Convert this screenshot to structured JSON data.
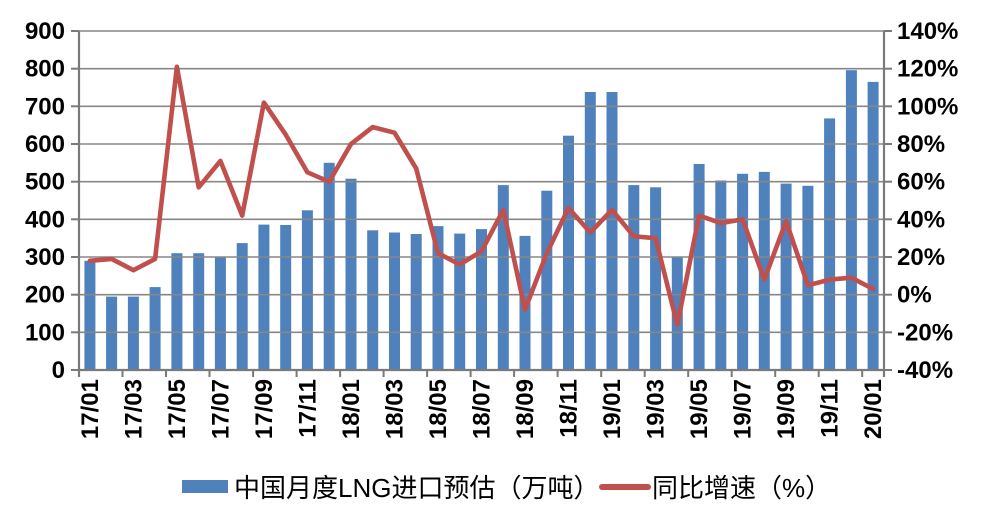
{
  "chart_data": {
    "type": "bar+line combo",
    "title": "",
    "categories": [
      "17/01",
      "17/02",
      "17/03",
      "17/04",
      "17/05",
      "17/06",
      "17/07",
      "17/08",
      "17/09",
      "17/10",
      "17/11",
      "17/12",
      "18/01",
      "18/02",
      "18/03",
      "18/04",
      "18/05",
      "18/06",
      "18/07",
      "18/08",
      "18/09",
      "18/10",
      "18/11",
      "18/12",
      "19/01",
      "19/02",
      "19/03",
      "19/04",
      "19/05",
      "19/06",
      "19/07",
      "19/08",
      "19/09",
      "19/10",
      "19/11",
      "19/12",
      "20/01"
    ],
    "x_tick_labels": [
      "17/01",
      "17/03",
      "17/05",
      "17/07",
      "17/09",
      "17/11",
      "18/01",
      "18/03",
      "18/05",
      "18/07",
      "18/09",
      "18/11",
      "19/01",
      "19/03",
      "19/05",
      "19/07",
      "19/09",
      "19/11",
      "20/01"
    ],
    "series": [
      {
        "name": "中国月度LNG进口预估（万吨）",
        "type": "bar",
        "axis": "left",
        "color": "#4F81BD",
        "values": [
          290,
          195,
          195,
          220,
          310,
          310,
          300,
          337,
          386,
          385,
          424,
          550,
          508,
          371,
          365,
          361,
          382,
          362,
          374,
          491,
          356,
          476,
          622,
          738,
          738,
          491,
          485,
          301,
          547,
          503,
          521,
          526,
          495,
          489,
          668,
          796,
          765
        ]
      },
      {
        "name": "同比增速（%）",
        "type": "line",
        "axis": "right",
        "color": "#C0504D",
        "values": [
          18,
          19,
          13,
          19,
          121,
          57,
          71,
          42,
          102,
          85,
          65,
          60,
          80,
          89,
          86,
          67,
          22,
          16,
          23,
          45,
          -8,
          22,
          46,
          33,
          45,
          31,
          30,
          -16,
          42,
          38,
          40,
          8,
          39,
          5,
          8,
          9,
          3
        ]
      }
    ],
    "left_axis": {
      "min": 0,
      "max": 900,
      "step": 100,
      "tick_labels": [
        "900",
        "800",
        "700",
        "600",
        "500",
        "400",
        "300",
        "200",
        "100",
        "0"
      ]
    },
    "right_axis": {
      "min": -40,
      "max": 140,
      "step": 20,
      "tick_labels": [
        "140%",
        "120%",
        "100%",
        "80%",
        "60%",
        "40%",
        "20%",
        "0%",
        "-20%",
        "-40%"
      ]
    },
    "grid": "horizontal",
    "legend_position": "bottom",
    "colors": {
      "grid": "#878787",
      "axis": "#7A7A7A",
      "text": "#000000"
    }
  }
}
